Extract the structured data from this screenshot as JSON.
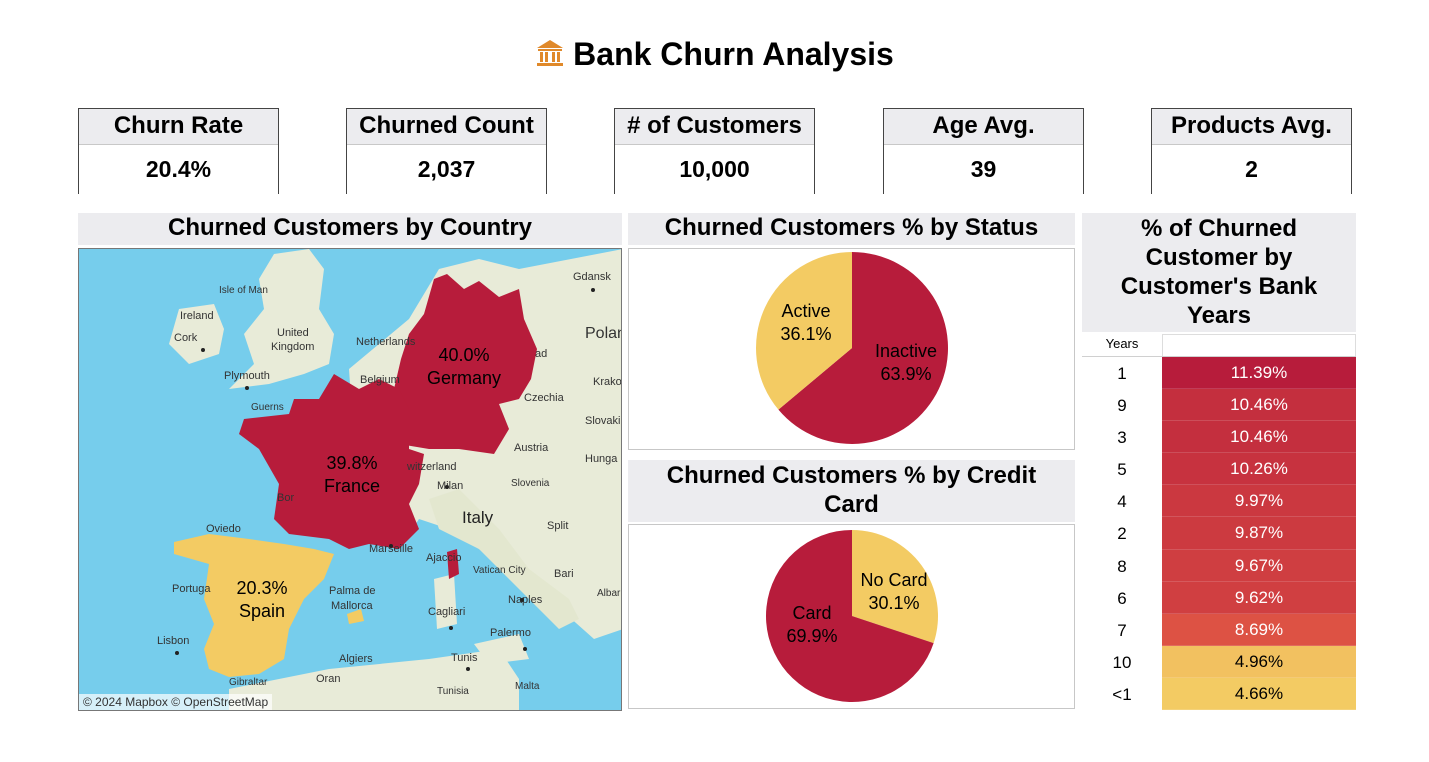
{
  "header": {
    "title": "Bank Churn Analysis",
    "icon": "bank-icon",
    "icon_color": "#e0892a"
  },
  "kpis": [
    {
      "label": "Churn Rate",
      "value": "20.4%"
    },
    {
      "label": "Churned Count",
      "value": "2,037"
    },
    {
      "label": "# of Customers",
      "value": "10,000"
    },
    {
      "label": "Age Avg.",
      "value": "39"
    },
    {
      "label": "Products Avg.",
      "value": "2"
    }
  ],
  "colors": {
    "red": "#b71c3b",
    "yellow": "#f3cb63",
    "header_bg": "#ececef",
    "sea": "#76cdec",
    "land": "#e8ebd8"
  },
  "map": {
    "title": "Churned Customers by Country",
    "attribution": "© 2024 Mapbox © OpenStreetMap",
    "countries": [
      {
        "name": "Germany",
        "pct": "40.0%"
      },
      {
        "name": "France",
        "pct": "39.8%"
      },
      {
        "name": "Spain",
        "pct": "20.3%"
      }
    ],
    "places": [
      "Isle of Man",
      "Ireland",
      "Cork",
      "United",
      "Kingdom",
      "Plymouth",
      "Guerns",
      "Netherlands",
      "Belgium",
      "Gdansk",
      "Polan",
      "ad",
      "Krako",
      "Czechia",
      "Slovaki",
      "Austria",
      "Hunga",
      "Slovenia",
      "witzerland",
      "Milan",
      "Italy",
      "Split",
      "Bor",
      "Oviedo",
      "Marseille",
      "Ajaccio",
      "Vatican City",
      "Bari",
      "Portuga",
      "Palma de",
      "Mallorca",
      "Albar",
      "Naples",
      "Cagliari",
      "Lisbon",
      "Palermo",
      "Algiers",
      "Tunis",
      "Oran",
      "Tunisia",
      "Malta",
      "Gibraltar"
    ]
  },
  "chart_data": [
    {
      "type": "pie",
      "title": "Churned Customers % by Status",
      "slices": [
        {
          "label": "Inactive",
          "value": 63.9,
          "color": "#b71c3b"
        },
        {
          "label": "Active",
          "value": 36.1,
          "color": "#f3cb63"
        }
      ]
    },
    {
      "type": "pie",
      "title": "Churned Customers % by Credit Card",
      "slices": [
        {
          "label": "No Card",
          "value": 30.1,
          "color": "#f3cb63"
        },
        {
          "label": "Card",
          "value": 69.9,
          "color": "#b71c3b"
        }
      ]
    },
    {
      "type": "table",
      "title": "% of Churned Customer by Customer's Bank Years",
      "column_header": "Years",
      "rows": [
        {
          "years": "1",
          "value": "11.39%",
          "num": 11.39
        },
        {
          "years": "9",
          "value": "10.46%",
          "num": 10.46
        },
        {
          "years": "3",
          "value": "10.46%",
          "num": 10.46
        },
        {
          "years": "5",
          "value": "10.26%",
          "num": 10.26
        },
        {
          "years": "4",
          "value": "9.97%",
          "num": 9.97
        },
        {
          "years": "2",
          "value": "9.87%",
          "num": 9.87
        },
        {
          "years": "8",
          "value": "9.67%",
          "num": 9.67
        },
        {
          "years": "6",
          "value": "9.62%",
          "num": 9.62
        },
        {
          "years": "7",
          "value": "8.69%",
          "num": 8.69
        },
        {
          "years": "10",
          "value": "4.96%",
          "num": 4.96
        },
        {
          "years": "<1",
          "value": "4.66%",
          "num": 4.66
        }
      ]
    }
  ]
}
